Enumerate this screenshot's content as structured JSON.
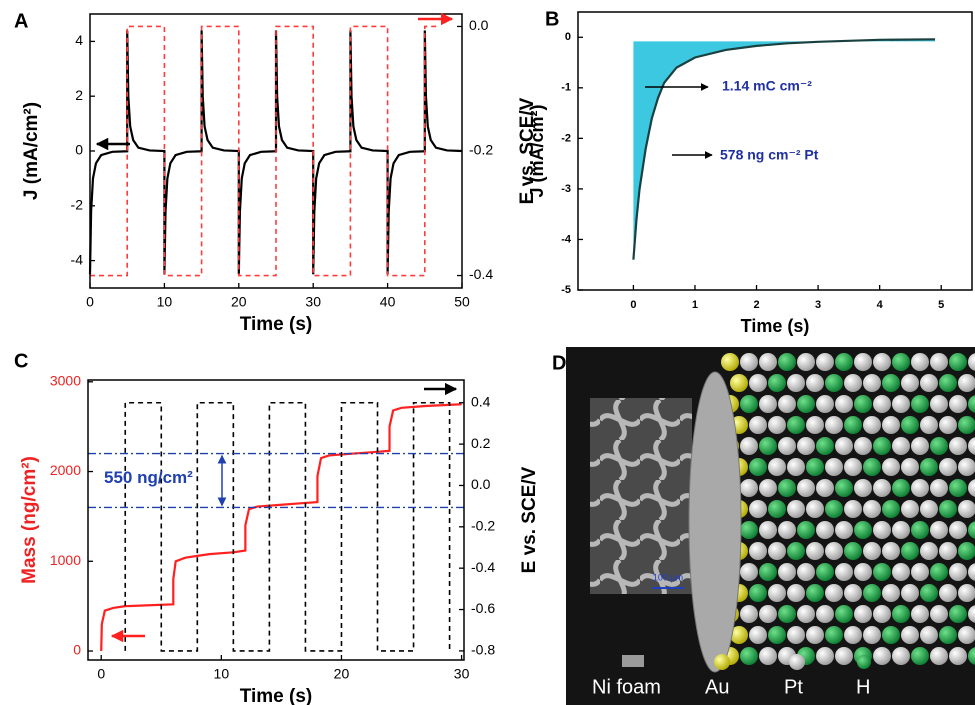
{
  "chart_data": [
    {
      "type": "line",
      "panel_label": "A",
      "xlabel": "Time (s)",
      "ylabel": "J (mA/cm²)",
      "y2label": "E vs. SCE/V",
      "xlim": [
        0,
        50
      ],
      "xticks": [
        0,
        10,
        20,
        30,
        40,
        50
      ],
      "ylim": [
        -5,
        5
      ],
      "yticks": [
        -4,
        -2,
        0,
        2,
        4
      ],
      "y2lim": [
        -0.42,
        0.02
      ],
      "y2ticks": [
        {
          "value": 0,
          "label": "0.0"
        },
        -0.2,
        -0.4
      ],
      "series": [
        {
          "color": "#000000",
          "x": [
            0,
            0.15,
            0.4,
            0.8,
            1.5,
            3,
            5,
            5,
            5.15,
            5.4,
            5.8,
            6.5,
            8,
            10,
            10,
            10.15,
            10.4,
            10.8,
            11.5,
            13,
            15,
            15,
            15.15,
            15.4,
            15.8,
            16.5,
            18,
            20,
            20,
            20.15,
            20.4,
            20.8,
            21.5,
            23,
            25,
            25,
            25.15,
            25.4,
            25.8,
            26.5,
            28,
            30,
            30,
            30.15,
            30.4,
            30.8,
            31.5,
            33,
            35,
            35,
            35.15,
            35.4,
            35.8,
            36.5,
            38,
            40,
            40,
            40.15,
            40.4,
            40.8,
            41.5,
            43,
            45,
            45,
            45.15,
            45.4,
            45.8,
            46.5,
            48,
            50
          ],
          "values": [
            -4.5,
            -2.2,
            -1.0,
            -0.45,
            -0.15,
            -0.03,
            -0.01,
            4.4,
            2.0,
            0.9,
            0.4,
            0.12,
            0.02,
            0,
            -4.5,
            -2.2,
            -1.0,
            -0.45,
            -0.15,
            -0.03,
            -0.01,
            4.4,
            2.0,
            0.9,
            0.4,
            0.12,
            0.02,
            0,
            -4.5,
            -2.2,
            -1.0,
            -0.45,
            -0.15,
            -0.03,
            -0.01,
            4.4,
            2.0,
            0.9,
            0.4,
            0.12,
            0.02,
            0,
            -4.5,
            -2.2,
            -1.0,
            -0.45,
            -0.15,
            -0.03,
            -0.01,
            4.4,
            2.0,
            0.9,
            0.4,
            0.12,
            0.02,
            0,
            -4.5,
            -2.2,
            -1.0,
            -0.45,
            -0.15,
            -0.03,
            -0.01,
            4.4,
            2.0,
            0.9,
            0.4,
            0.12,
            0.02,
            0
          ]
        },
        {
          "color": "#ff3b3b",
          "dash": true,
          "axis": "y2",
          "x": [
            0,
            5,
            5,
            10,
            10,
            15,
            15,
            20,
            20,
            25,
            25,
            30,
            30,
            35,
            35,
            40,
            40,
            45,
            45,
            47
          ],
          "values": [
            -0.4,
            -0.4,
            0,
            0,
            -0.4,
            -0.4,
            0,
            0,
            -0.4,
            -0.4,
            0,
            0,
            -0.4,
            -0.4,
            0,
            0,
            -0.4,
            -0.4,
            0,
            0
          ]
        }
      ]
    },
    {
      "type": "line",
      "panel_label": "B",
      "xlabel": "Time (s)",
      "ylabel": "J (mA/cm²)",
      "xlim": [
        -0.9,
        5.5
      ],
      "xticks": [
        0,
        1,
        2,
        3,
        4,
        5
      ],
      "ylim": [
        -5,
        0.5
      ],
      "yticks": [
        -5,
        -4,
        -3,
        -2,
        -1,
        0
      ],
      "annotations": [
        "1.14 mC cm⁻²",
        "578 ng cm⁻² Pt"
      ],
      "series": [
        {
          "color": "#1a4040",
          "fill": "#3cc8e0",
          "fill_to": -0.08,
          "x": [
            0,
            0.05,
            0.1,
            0.2,
            0.3,
            0.4,
            0.5,
            0.7,
            1,
            1.5,
            2,
            2.5,
            3,
            4,
            4.9
          ],
          "values": [
            -4.4,
            -3.6,
            -3.0,
            -2.2,
            -1.6,
            -1.2,
            -0.9,
            -0.6,
            -0.4,
            -0.25,
            -0.17,
            -0.12,
            -0.09,
            -0.05,
            -0.04
          ]
        }
      ]
    },
    {
      "type": "line",
      "panel_label": "C",
      "xlabel": "Time (s)",
      "ylabel": "Mass (ng/cm²)",
      "y2label": "E vs. SCE/V",
      "y_axis_color": "#ee2222",
      "xlim": [
        -1.1,
        30.2
      ],
      "xticks": [
        0,
        10,
        20,
        30
      ],
      "ylim": [
        -100,
        3020
      ],
      "yticks": [
        0,
        1000,
        2000,
        3000
      ],
      "y2lim": [
        -0.844,
        0.51
      ],
      "y2ticks": [
        0.4,
        0.2,
        {
          "value": 0,
          "label": "0.0"
        },
        -0.2,
        -0.4,
        -0.6,
        -0.8
      ],
      "hlines": [
        1600,
        2200
      ],
      "annotations": [
        "550 ng/cm²"
      ],
      "series": [
        {
          "color": "#ff2020",
          "x": [
            0,
            0.05,
            0.3,
            1,
            2,
            4,
            6,
            6,
            6.2,
            7,
            9,
            11,
            12,
            12,
            12.3,
            13,
            15,
            17,
            18,
            18,
            18.3,
            19,
            21,
            23,
            24,
            24,
            24.3,
            25,
            27,
            30
          ],
          "values": [
            0,
            300,
            450,
            480,
            500,
            510,
            520,
            800,
            1000,
            1040,
            1080,
            1100,
            1120,
            1400,
            1580,
            1610,
            1630,
            1650,
            1660,
            1950,
            2150,
            2180,
            2200,
            2220,
            2230,
            2500,
            2680,
            2710,
            2730,
            2750
          ]
        },
        {
          "color": "#000000",
          "dash": true,
          "axis": "y2",
          "x": [
            2,
            2,
            5,
            5,
            8,
            8,
            11,
            11,
            14,
            14,
            17,
            17,
            20,
            20,
            23,
            23,
            26,
            26,
            29,
            29
          ],
          "values": [
            -0.8,
            0.4,
            0.4,
            -0.8,
            -0.8,
            0.4,
            0.4,
            -0.8,
            -0.8,
            0.4,
            0.4,
            -0.8,
            -0.8,
            0.4,
            0.4,
            -0.8,
            -0.8,
            0.4,
            0.4,
            -0.8
          ]
        }
      ]
    }
  ],
  "panel_d": {
    "panel_label": "D",
    "legend": [
      "Ni foam",
      "Au",
      "Pt",
      "H"
    ],
    "scale_bar": "100 μm"
  }
}
